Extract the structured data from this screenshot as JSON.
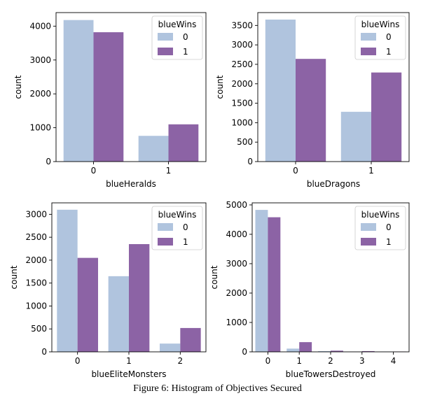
{
  "caption": "Figure 6: Histogram of Objectives Secured",
  "colors": {
    "series_0": "#b0c4de",
    "series_1": "#8c63a5"
  },
  "chart_data": [
    {
      "type": "bar",
      "xlabel": "blueHeralds",
      "ylabel": "count",
      "categories": [
        "0",
        "1"
      ],
      "ylim": [
        0,
        4400
      ],
      "yticks": [
        0,
        1000,
        2000,
        3000,
        4000
      ],
      "legend": {
        "title": "blueWins",
        "position": "top-right"
      },
      "series": [
        {
          "name": "0",
          "values": [
            4180,
            760
          ]
        },
        {
          "name": "1",
          "values": [
            3820,
            1100
          ]
        }
      ]
    },
    {
      "type": "bar",
      "xlabel": "blueDragons",
      "ylabel": "count",
      "categories": [
        "0",
        "1"
      ],
      "ylim": [
        0,
        3830
      ],
      "yticks": [
        0,
        500,
        1000,
        1500,
        2000,
        2500,
        3000,
        3500
      ],
      "legend": {
        "title": "blueWins",
        "position": "top-right"
      },
      "series": [
        {
          "name": "0",
          "values": [
            3650,
            1280
          ]
        },
        {
          "name": "1",
          "values": [
            2640,
            2290
          ]
        }
      ]
    },
    {
      "type": "bar",
      "xlabel": "blueEliteMonsters",
      "ylabel": "count",
      "categories": [
        "0",
        "1",
        "2"
      ],
      "ylim": [
        0,
        3250
      ],
      "yticks": [
        0,
        500,
        1000,
        1500,
        2000,
        2500,
        3000
      ],
      "legend": {
        "title": "blueWins",
        "position": "top-right"
      },
      "series": [
        {
          "name": "0",
          "values": [
            3100,
            1650,
            180
          ]
        },
        {
          "name": "1",
          "values": [
            2050,
            2350,
            520
          ]
        }
      ]
    },
    {
      "type": "bar",
      "xlabel": "blueTowersDestroyed",
      "ylabel": "count",
      "categories": [
        "0",
        "1",
        "2",
        "3",
        "4"
      ],
      "ylim": [
        0,
        5070
      ],
      "yticks": [
        0,
        1000,
        2000,
        3000,
        4000,
        5000
      ],
      "legend": {
        "title": "blueWins",
        "position": "top-right"
      },
      "series": [
        {
          "name": "0",
          "values": [
            4830,
            110,
            25,
            10,
            5
          ]
        },
        {
          "name": "1",
          "values": [
            4580,
            330,
            40,
            25,
            10
          ]
        }
      ]
    }
  ]
}
